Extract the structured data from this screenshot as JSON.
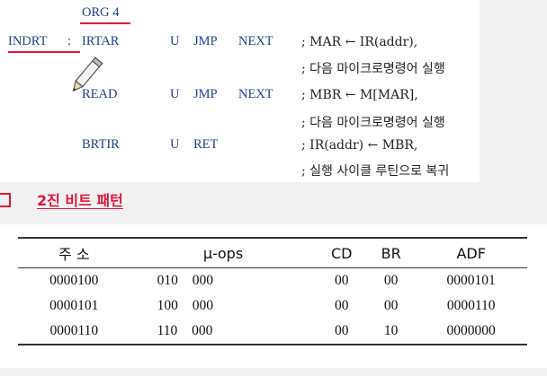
{
  "code": {
    "org": "ORG 4",
    "label": "INDRT",
    "colon": ":",
    "lines": [
      {
        "sym": "IRTAR",
        "cond": "U",
        "br": "JMP",
        "addr": "NEXT",
        "comment": "; MAR ← IR(addr),"
      },
      {
        "comment": "; 다음 마이크로명령어 실행"
      },
      {
        "sym": "READ",
        "cond": "U",
        "br": "JMP",
        "addr": "NEXT",
        "comment": "; MBR ← M[MAR],"
      },
      {
        "comment": "; 다음 마이크로명령어 실행"
      },
      {
        "sym": "BRTIR",
        "cond": "U",
        "br": "RET",
        "addr": "",
        "comment": "; IR(addr) ← MBR,"
      },
      {
        "comment": "; 실행 사이클 루틴으로 복귀"
      }
    ]
  },
  "section": {
    "title": "2진 비트 패턴"
  },
  "table": {
    "headers": [
      "주 소",
      "μ-ops",
      "CD",
      "BR",
      "ADF"
    ],
    "rows": [
      [
        "0000100",
        "010  000",
        "00",
        "00",
        "0000101"
      ],
      [
        "0000101",
        "100  000",
        "00",
        "00",
        "0000110"
      ],
      [
        "0000110",
        "110  000",
        "00",
        "10",
        "0000000"
      ]
    ]
  },
  "colors": {
    "accent": "#e0163c",
    "code_text": "#1f3f8f"
  }
}
